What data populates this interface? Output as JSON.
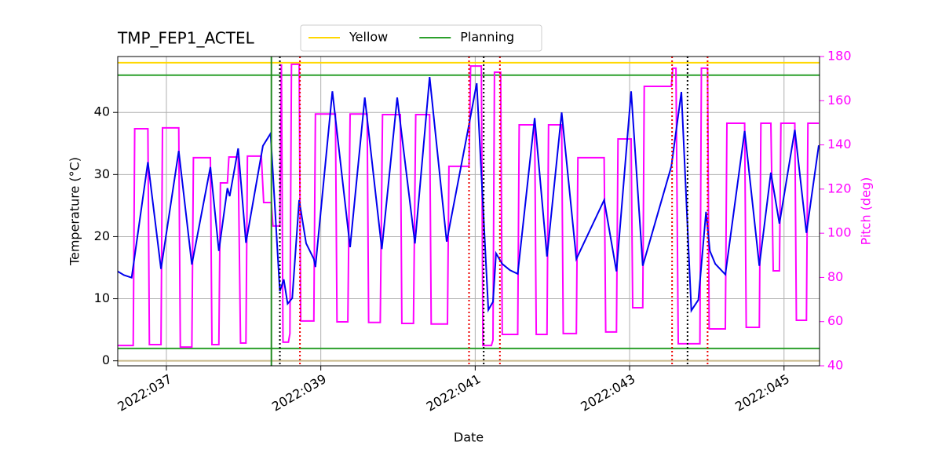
{
  "chart_data": {
    "type": "line",
    "title": "TMP_FEP1_ACTEL",
    "xlabel": "Date",
    "ylabel": "Temperature (°C)",
    "y2label": "Pitch (deg)",
    "xlim": [
      36.37,
      45.46
    ],
    "xticks": [
      {
        "value": 37,
        "label": "2022:037"
      },
      {
        "value": 39,
        "label": "2022:039"
      },
      {
        "value": 41,
        "label": "2022:041"
      },
      {
        "value": 43,
        "label": "2022:043"
      },
      {
        "value": 45,
        "label": "2022:045"
      }
    ],
    "ylim": [
      -0.8,
      49
    ],
    "yticks": [
      0,
      10,
      20,
      30,
      40
    ],
    "y2lim": [
      40,
      180
    ],
    "y2ticks": [
      40,
      60,
      80,
      100,
      120,
      140,
      160,
      180
    ],
    "y2color": "#ff00ff",
    "grid": true,
    "legend": "upper center",
    "limits": [
      {
        "name": "Yellow",
        "color": "#ffd700",
        "values": [
          48
        ]
      },
      {
        "name": "Planning",
        "color": "#2ca02c",
        "values": [
          46,
          2
        ]
      },
      {
        "color": "#c8b88a",
        "values": [
          0
        ]
      }
    ],
    "vlines": [
      {
        "color": "#228b22",
        "style": "solid",
        "values": [
          38.36
        ]
      },
      {
        "color": "#000000",
        "style": "dotted",
        "values": [
          38.47,
          41.11,
          43.75
        ]
      },
      {
        "color": "#ee0000",
        "style": "dotted",
        "values": [
          38.73,
          40.92,
          41.32,
          43.55,
          44.01
        ]
      }
    ],
    "series": [
      {
        "color": "#0000ee",
        "axis": "y",
        "x": [
          36.37,
          36.45,
          36.55,
          36.76,
          36.93,
          37.16,
          37.33,
          37.57,
          37.68,
          37.79,
          37.82,
          37.93,
          38.03,
          38.25,
          38.35,
          38.47,
          38.52,
          38.57,
          38.63,
          38.72,
          38.81,
          38.91,
          38.93,
          39.15,
          39.38,
          39.57,
          39.79,
          39.99,
          40.22,
          40.41,
          40.63,
          40.91,
          41.02,
          41.17,
          41.23,
          41.27,
          41.35,
          41.45,
          41.55,
          41.77,
          41.93,
          42.12,
          42.31,
          42.67,
          42.83,
          43.02,
          43.17,
          43.54,
          43.67,
          43.8,
          43.89,
          43.99,
          44.04,
          44.11,
          44.24,
          44.49,
          44.68,
          44.83,
          44.94,
          45.14,
          45.29,
          45.45
        ],
        "values": [
          14.4,
          13.8,
          13.4,
          32.0,
          14.8,
          33.8,
          15.5,
          31.2,
          17.7,
          27.8,
          26.5,
          34.2,
          19.0,
          34.6,
          36.6,
          11.2,
          13.1,
          9.2,
          10.1,
          25.9,
          18.9,
          16.4,
          15.1,
          43.4,
          18.3,
          42.4,
          18.0,
          42.4,
          18.9,
          45.7,
          19.2,
          37.4,
          44.7,
          8.2,
          9.5,
          17.3,
          15.6,
          14.6,
          14.0,
          39.1,
          16.8,
          40.0,
          16.4,
          25.9,
          14.4,
          43.4,
          15.3,
          31.3,
          43.3,
          8.1,
          9.8,
          24.0,
          17.7,
          15.6,
          13.9,
          37.0,
          15.3,
          30.3,
          22.1,
          37.2,
          20.6,
          34.7
        ]
      },
      {
        "color": "#ff00ff",
        "axis": "y2",
        "x": [
          36.37,
          36.57,
          36.59,
          36.76,
          36.78,
          36.93,
          36.95,
          37.16,
          37.18,
          37.33,
          37.35,
          37.57,
          37.59,
          37.68,
          37.7,
          37.79,
          37.81,
          37.93,
          37.96,
          38.03,
          38.05,
          38.23,
          38.26,
          38.36,
          38.38,
          38.47,
          38.49,
          38.51,
          38.58,
          38.6,
          38.62,
          38.72,
          38.74,
          38.91,
          38.93,
          39.19,
          39.21,
          39.35,
          39.38,
          39.6,
          39.62,
          39.77,
          39.8,
          40.03,
          40.05,
          40.2,
          40.23,
          40.41,
          40.43,
          40.64,
          40.66,
          40.92,
          40.94,
          41.08,
          41.1,
          41.21,
          41.23,
          41.25,
          41.33,
          41.35,
          41.55,
          41.57,
          41.77,
          41.79,
          41.93,
          41.95,
          42.12,
          42.14,
          42.31,
          42.33,
          42.67,
          42.69,
          42.83,
          42.85,
          43.02,
          43.04,
          43.17,
          43.19,
          43.54,
          43.56,
          43.6,
          43.63,
          43.91,
          43.93,
          44.01,
          44.03,
          44.24,
          44.26,
          44.49,
          44.51,
          44.68,
          44.7,
          44.83,
          44.86,
          44.94,
          44.96,
          45.14,
          45.16,
          45.29,
          45.31,
          45.45
        ],
        "values": [
          49.2,
          49.2,
          147.3,
          147.3,
          49.6,
          49.6,
          147.7,
          147.7,
          48.5,
          48.5,
          134.2,
          134.2,
          49.6,
          49.6,
          122.8,
          122.8,
          134.5,
          134.5,
          50.3,
          50.3,
          134.9,
          134.9,
          113.9,
          113.9,
          103.3,
          103.3,
          176.5,
          50.7,
          50.7,
          54.6,
          176.5,
          176.5,
          60.3,
          60.3,
          154.0,
          154.0,
          59.9,
          59.9,
          154.0,
          154.0,
          59.6,
          59.6,
          153.7,
          153.7,
          59.2,
          59.2,
          153.7,
          153.7,
          58.9,
          58.9,
          130.3,
          130.3,
          175.7,
          175.7,
          49.2,
          49.2,
          51.7,
          172.9,
          172.9,
          54.2,
          54.2,
          149.1,
          149.1,
          54.2,
          54.2,
          149.1,
          149.1,
          54.6,
          54.6,
          134.2,
          134.2,
          55.3,
          55.3,
          142.7,
          142.7,
          66.3,
          66.3,
          166.5,
          166.5,
          174.7,
          174.7,
          50.0,
          50.0,
          174.7,
          174.7,
          56.7,
          56.7,
          149.8,
          149.8,
          57.4,
          57.4,
          149.8,
          149.8,
          83.0,
          83.0,
          149.8,
          149.8,
          60.6,
          60.6,
          149.8,
          149.8
        ]
      }
    ]
  }
}
